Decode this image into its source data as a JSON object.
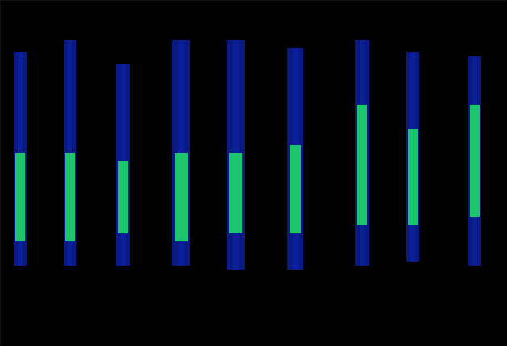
{
  "chart_data": {
    "type": "spectrogram",
    "tick_labels": false,
    "grid": false,
    "xlim": [
      0,
      630
    ],
    "ylim": [
      0,
      430
    ],
    "outer_color": "#0b1f9a",
    "core_color": "#1fd86a",
    "syllables": [
      {
        "time": 25,
        "duration": 16,
        "low": 100,
        "high": 365,
        "core_low": 130,
        "core_high": 240
      },
      {
        "time": 87,
        "duration": 16,
        "low": 100,
        "high": 380,
        "core_low": 130,
        "core_high": 240
      },
      {
        "time": 153,
        "duration": 18,
        "low": 100,
        "high": 350,
        "core_low": 140,
        "core_high": 230
      },
      {
        "time": 225,
        "duration": 22,
        "low": 100,
        "high": 380,
        "core_low": 130,
        "core_high": 240
      },
      {
        "time": 293,
        "duration": 22,
        "low": 95,
        "high": 380,
        "core_low": 140,
        "core_high": 240
      },
      {
        "time": 367,
        "duration": 20,
        "low": 95,
        "high": 370,
        "core_low": 140,
        "core_high": 250
      },
      {
        "time": 450,
        "duration": 18,
        "low": 100,
        "high": 380,
        "core_low": 150,
        "core_high": 300
      },
      {
        "time": 513,
        "duration": 16,
        "low": 105,
        "high": 365,
        "core_low": 150,
        "core_high": 270
      },
      {
        "time": 590,
        "duration": 16,
        "low": 100,
        "high": 360,
        "core_low": 160,
        "core_high": 300
      }
    ]
  }
}
